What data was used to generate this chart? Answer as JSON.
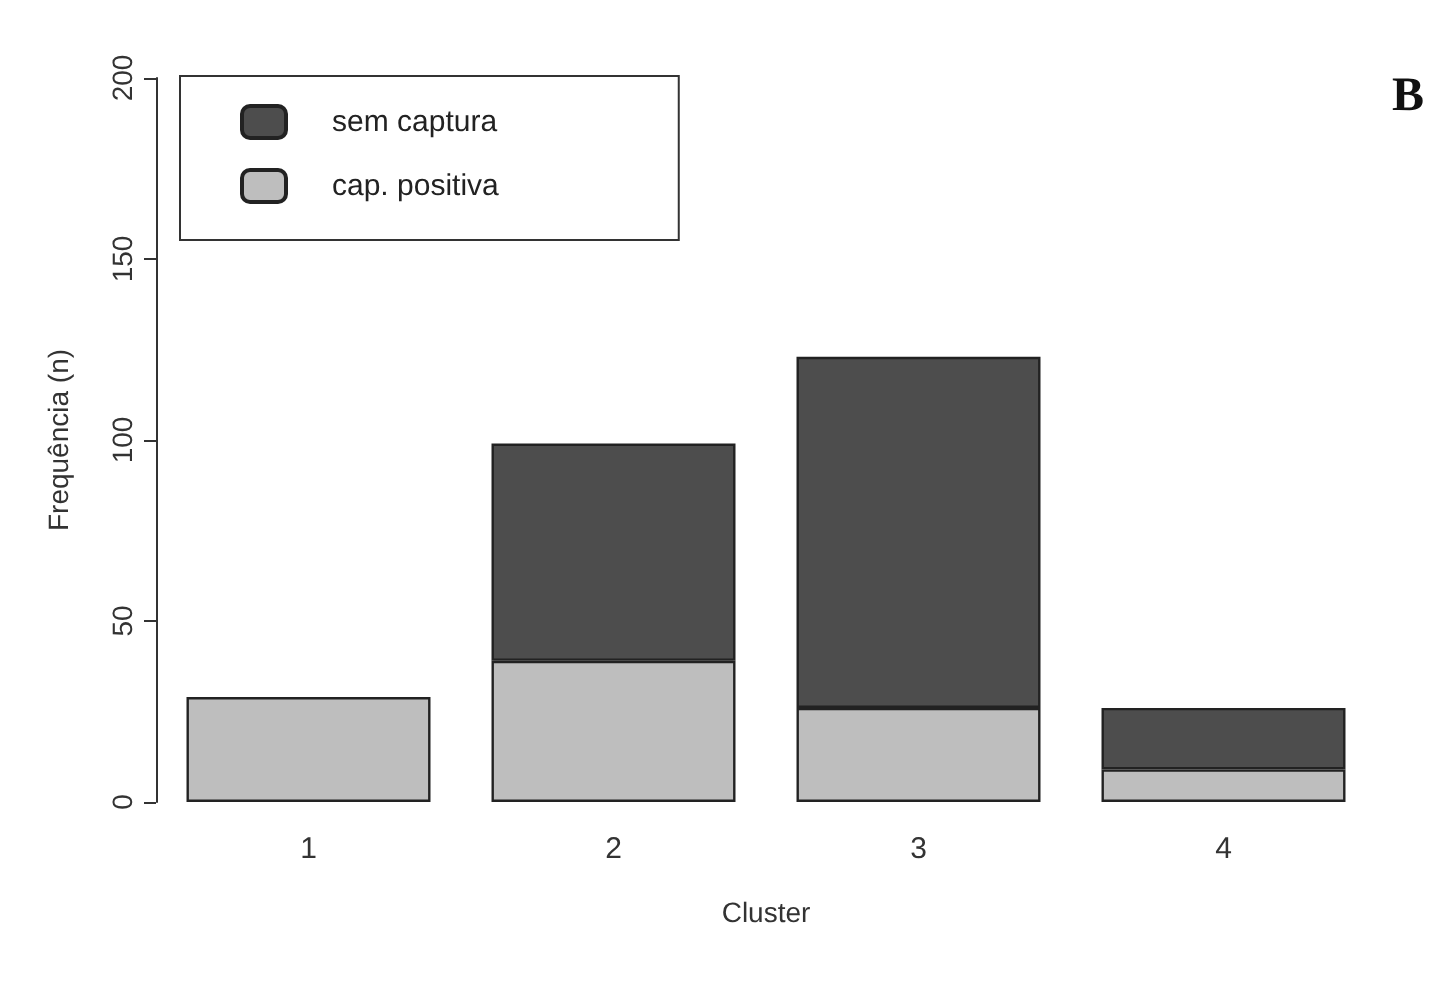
{
  "chart_data": {
    "type": "bar",
    "stacked": true,
    "xlabel": "Cluster",
    "ylabel": "Frequência (n)",
    "annotations": [
      "B"
    ],
    "categories": [
      "1",
      "2",
      "3",
      "4"
    ],
    "series": [
      {
        "name": "cap. positiva",
        "color": "#bebebe",
        "values": [
          29,
          39,
          26,
          9
        ]
      },
      {
        "name": "sem captura",
        "color": "#4d4d4d",
        "values": [
          null,
          60,
          97,
          17
        ]
      }
    ],
    "ylim": [
      0,
      200
    ],
    "yticks": [
      0,
      50,
      100,
      150,
      200
    ],
    "grid": false,
    "legend": "top left"
  }
}
